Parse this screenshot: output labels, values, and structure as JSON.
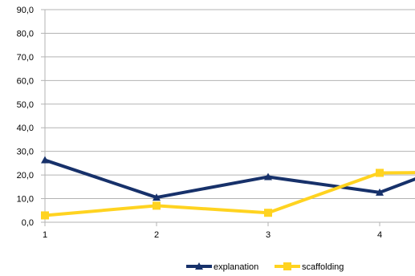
{
  "chart_data": {
    "type": "line",
    "title": "",
    "xlabel": "",
    "ylabel": "",
    "categories": [
      "1",
      "2",
      "3",
      "4"
    ],
    "ylim": [
      0,
      90
    ],
    "y_ticks": [
      "0,0",
      "10,0",
      "20,0",
      "30,0",
      "40,0",
      "50,0",
      "60,0",
      "70,0",
      "80,0",
      "90,0"
    ],
    "grid": "horizontal",
    "legend_position": "bottom-right",
    "series": [
      {
        "name": "explanation",
        "color": "#17316a",
        "marker": "triangle",
        "x": [
          1,
          2,
          3,
          4,
          4.33
        ],
        "values": [
          26.3,
          10.5,
          19.2,
          12.6,
          18.5
        ]
      },
      {
        "name": "scaffolding",
        "color": "#ffd320",
        "marker": "square",
        "x": [
          1,
          2,
          3,
          4,
          4.33
        ],
        "values": [
          2.9,
          7.0,
          4.0,
          20.9,
          21.0
        ]
      }
    ]
  }
}
